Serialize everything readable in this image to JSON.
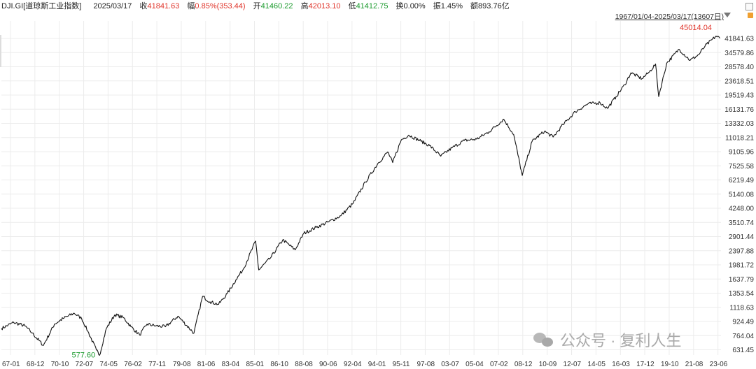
{
  "header": {
    "symbol": "DJI.GI[道琼斯工业指数]",
    "date": "2025/03/17",
    "close_label": "收",
    "close_value": "41841.63",
    "change_label": "幅",
    "change_value": "0.85%(353.44)",
    "open_label": "开",
    "open_value": "41460.22",
    "high_label": "高",
    "high_value": "42013.10",
    "low_label": "低",
    "low_value": "41412.75",
    "turnover_label": "换",
    "turnover_value": "0.00%",
    "amplitude_label": "振",
    "amplitude_value": "1.45%",
    "amount_label": "额",
    "amount_value": "893.76亿"
  },
  "range_label": "1967/01/04-2025/03/17(13607日)",
  "watermark": "公众号 · 复利人生",
  "colors": {
    "line": "#111111",
    "grid": "#ececec",
    "high": "#e0352b",
    "low": "#1a9a2c"
  },
  "chart_data": {
    "type": "line",
    "scale": "log",
    "y_ticks": [
      "41841.63",
      "34579.86",
      "28578.40",
      "23618.51",
      "19519.43",
      "16131.76",
      "13332.03",
      "11018.21",
      "9105.96",
      "7525.58",
      "6219.49",
      "5140.08",
      "4248.00",
      "3510.74",
      "2901.44",
      "2397.88",
      "1981.72",
      "1637.79",
      "1353.54",
      "1118.63",
      "924.49",
      "764.04",
      "631.45"
    ],
    "x_ticks": [
      "67-01",
      "68-12",
      "70-10",
      "72-07",
      "74-05",
      "76-02",
      "77-11",
      "79-08",
      "81-06",
      "83-04",
      "85-01",
      "86-10",
      "88-08",
      "90-06",
      "92-04",
      "94-01",
      "95-11",
      "97-08",
      "03-07",
      "05-04",
      "07-02",
      "08-12",
      "10-09",
      "12-07",
      "14-05",
      "16-03",
      "17-12",
      "19-10",
      "21-08",
      "23-06"
    ],
    "max_label": "45014.04",
    "min_label": "577.60",
    "x": [
      1967.0,
      1968.0,
      1968.9,
      1969.5,
      1970.4,
      1971.3,
      1972.0,
      1972.9,
      1973.5,
      1974.0,
      1974.7,
      1974.95,
      1975.5,
      1976.2,
      1976.9,
      1977.5,
      1978.2,
      1978.8,
      1979.5,
      1980.3,
      1981.3,
      1982.6,
      1983.3,
      1983.9,
      1984.6,
      1985.3,
      1986.0,
      1986.6,
      1987.6,
      1987.85,
      1988.8,
      1989.8,
      1990.8,
      1991.5,
      1992.5,
      1993.5,
      1994.5,
      1995.5,
      1996.5,
      1997.5,
      1998.3,
      1998.7,
      1999.4,
      2000.0,
      2001.0,
      2001.7,
      2002.6,
      2003.5,
      2004.5,
      2005.5,
      2006.5,
      2007.7,
      2008.5,
      2009.2,
      2010.0,
      2011.0,
      2011.7,
      2012.5,
      2013.5,
      2014.5,
      2015.5,
      2016.1,
      2016.8,
      2017.5,
      2018.0,
      2018.9,
      2019.5,
      2020.0,
      2020.25,
      2020.9,
      2021.9,
      2022.8,
      2023.5,
      2024.0,
      2024.9,
      2025.2
    ],
    "y": [
      830,
      900,
      860,
      780,
      660,
      880,
      950,
      1020,
      950,
      800,
      620,
      578,
      830,
      1000,
      960,
      850,
      760,
      880,
      860,
      850,
      980,
      780,
      1280,
      1190,
      1150,
      1330,
      1600,
      1850,
      2700,
      1830,
      2150,
      2750,
      2400,
      3000,
      3250,
      3500,
      3800,
      4500,
      6000,
      7700,
      9000,
      7800,
      10600,
      11300,
      10400,
      9800,
      8500,
      9500,
      10500,
      10700,
      11800,
      14000,
      11400,
      6550,
      10400,
      11900,
      11000,
      13000,
      15500,
      17200,
      17500,
      16200,
      19000,
      22300,
      26200,
      24200,
      26500,
      29500,
      19000,
      29800,
      36000,
      31000,
      33500,
      37500,
      43000,
      41842
    ]
  }
}
